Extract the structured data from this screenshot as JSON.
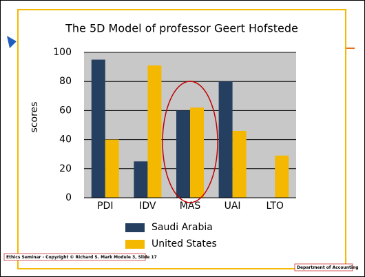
{
  "chart_data": {
    "type": "bar",
    "title": "The 5D Model of professor Geert Hofstede",
    "ylabel": "scores",
    "categories": [
      "PDI",
      "IDV",
      "MAS",
      "UAI",
      "LTO"
    ],
    "series": [
      {
        "name": "Saudi Arabia",
        "color": "#243f60",
        "values": [
          95,
          25,
          60,
          80,
          null
        ]
      },
      {
        "name": "United States",
        "color": "#f5b800",
        "values": [
          40,
          91,
          62,
          46,
          29
        ]
      }
    ],
    "ylim": [
      0,
      100
    ],
    "yticks": [
      0,
      20,
      40,
      60,
      80,
      100
    ],
    "grid": true,
    "legend": "bottom"
  },
  "footer": {
    "left": "Ethics Seminar - Copyright © Richard S. Mark   Module 3,  Slide 17",
    "right": "Department of Accounting"
  }
}
